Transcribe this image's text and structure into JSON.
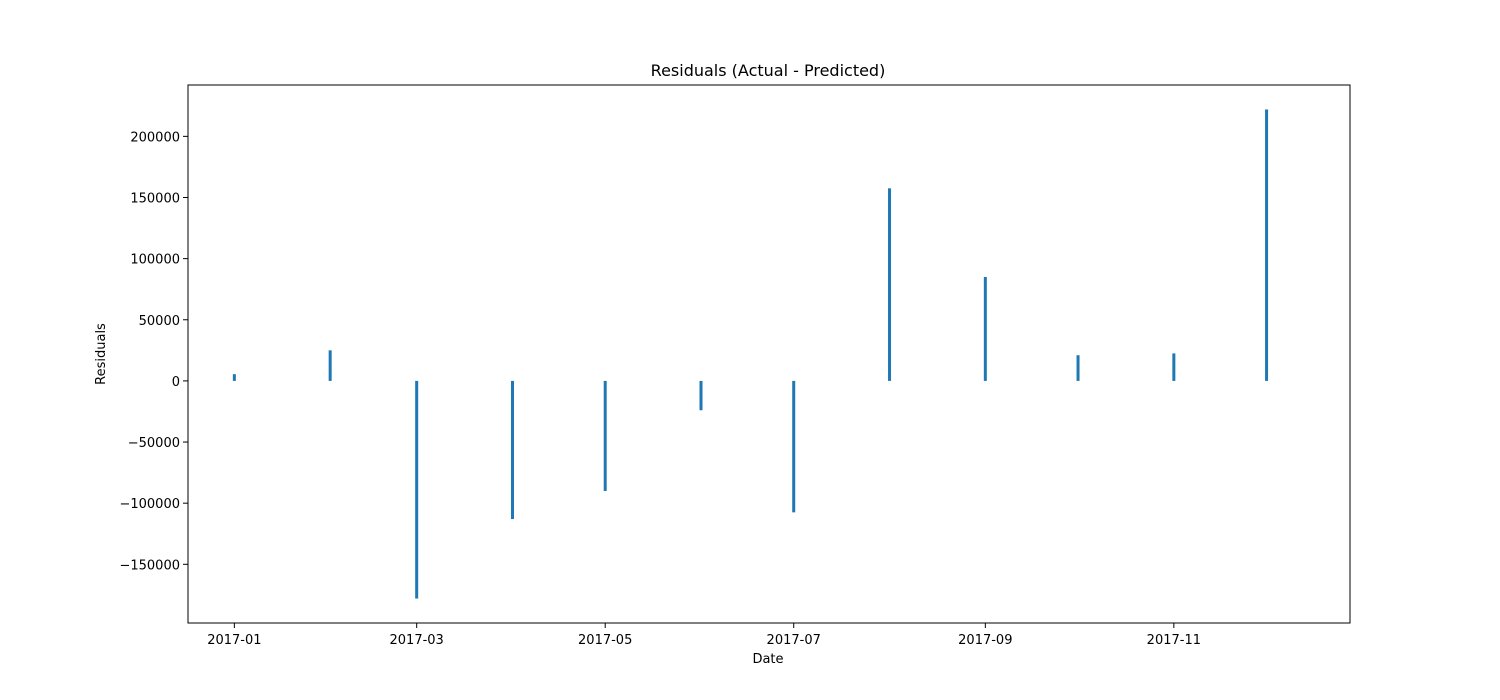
{
  "chart_data": {
    "type": "bar",
    "title": "Residuals (Actual - Predicted)",
    "xlabel": "Date",
    "ylabel": "Residuals",
    "x": [
      "2017-01-01",
      "2017-02-01",
      "2017-03-01",
      "2017-04-01",
      "2017-05-01",
      "2017-06-01",
      "2017-07-01",
      "2017-08-01",
      "2017-09-01",
      "2017-10-01",
      "2017-11-01",
      "2017-12-01"
    ],
    "values": [
      5500,
      25000,
      -178000,
      -113000,
      -90000,
      -24000,
      -107500,
      157500,
      85000,
      21000,
      22500,
      222000
    ],
    "xlim": [
      "2016-12-17",
      "2017-12-28"
    ],
    "ylim": [
      -198000,
      242000
    ],
    "x_ticks": [
      "2017-01",
      "2017-03",
      "2017-05",
      "2017-07",
      "2017-09",
      "2017-11"
    ],
    "y_ticks": [
      200000,
      150000,
      100000,
      50000,
      0,
      -50000,
      -100000,
      -150000
    ],
    "y_tick_labels": [
      "200000",
      "150000",
      "100000",
      "50000",
      "0",
      "−50000",
      "−100000",
      "−150000"
    ],
    "bar_color": "#1f77b4",
    "grid": false,
    "legend": "none"
  }
}
